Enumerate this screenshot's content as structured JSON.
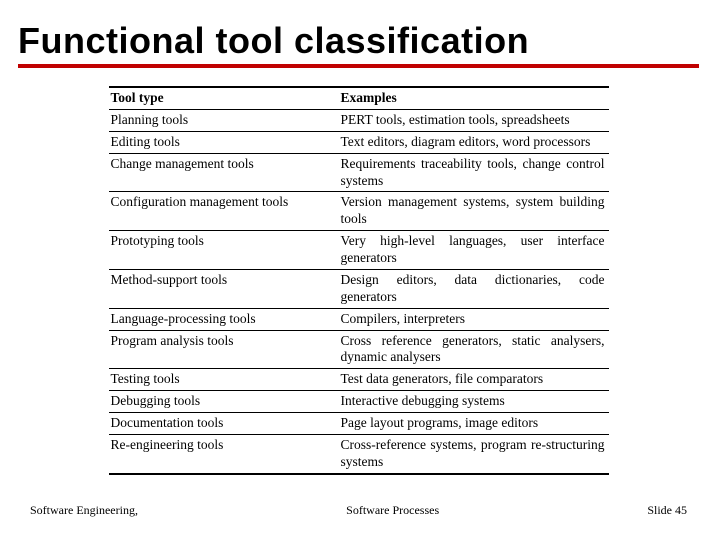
{
  "slide": {
    "title": "Functional tool classification",
    "underline_color": "#c00000"
  },
  "table": {
    "headers": {
      "col1": "Tool type",
      "col2": "Examples"
    },
    "rows": [
      {
        "type": "Planning tools",
        "examples": "PERT tools, estimation tools, spreadsheets"
      },
      {
        "type": "Editing tools",
        "examples": "Text editors, diagram editors, word processors"
      },
      {
        "type": "Change management tools",
        "examples": "Requirements traceability tools, change control systems"
      },
      {
        "type": "Configuration management tools",
        "examples": "Version management systems, system building tools"
      },
      {
        "type": "Prototyping tools",
        "examples": "Very high-level languages, user interface generators"
      },
      {
        "type": "Method-support tools",
        "examples": "Design editors, data dictionaries, code generators"
      },
      {
        "type": "Language-processing tools",
        "examples": "Compilers, interpreters"
      },
      {
        "type": "Program analysis tools",
        "examples": "Cross reference generators, static analysers, dynamic analysers"
      },
      {
        "type": "Testing tools",
        "examples": "Test data generators, file comparators"
      },
      {
        "type": "Debugging tools",
        "examples": "Interactive debugging systems"
      },
      {
        "type": "Documentation tools",
        "examples": "Page layout programs, image editors"
      },
      {
        "type": "Re-engineering tools",
        "examples": "Cross-reference systems, program re-structuring systems"
      }
    ]
  },
  "footer": {
    "left": "Software Engineering,",
    "center": "Software Processes",
    "right": "Slide 45"
  }
}
